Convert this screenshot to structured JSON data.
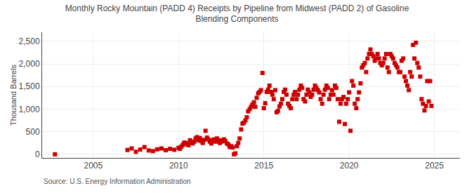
{
  "chart_data": {
    "type": "scatter",
    "title": "Monthly Rocky Mountain (PADD 4) Receipts by Pipeline from Midwest (PADD 2) of Gasoline\nBlending Components",
    "y_label": "Thousand Barrels",
    "annotations": [
      "Source: U.S. Energy Information Administration"
    ],
    "color": "#cc0000",
    "marker": "square",
    "grid": true,
    "xlim": [
      2002.0,
      2026.5
    ],
    "xticks": [
      2005,
      2010,
      2015,
      2020,
      2025
    ],
    "ylim": [
      -80,
      2700
    ],
    "yticks": [
      0,
      500,
      {
        "value": 1000,
        "label": "1,000"
      },
      {
        "value": 1500,
        "label": "1,500"
      },
      {
        "value": 2000,
        "label": "2,000"
      },
      {
        "value": 2500,
        "label": "2,500"
      }
    ],
    "x": [
      2002.75,
      2007.0,
      2007.25,
      2007.5,
      2007.75,
      2008.0,
      2008.25,
      2008.5,
      2008.75,
      2009.0,
      2009.25,
      2009.5,
      2009.75,
      2010.0,
      2010.08,
      2010.17,
      2010.25,
      2010.33,
      2010.42,
      2010.5,
      2010.58,
      2010.67,
      2010.75,
      2010.83,
      2010.92,
      2011.0,
      2011.08,
      2011.17,
      2011.25,
      2011.33,
      2011.42,
      2011.5,
      2011.58,
      2011.67,
      2011.75,
      2011.83,
      2011.92,
      2012.0,
      2012.08,
      2012.17,
      2012.25,
      2012.33,
      2012.42,
      2012.5,
      2012.58,
      2012.67,
      2012.75,
      2012.83,
      2012.92,
      2013.0,
      2013.08,
      2013.17,
      2013.25,
      2013.33,
      2013.42,
      2013.5,
      2013.58,
      2013.67,
      2013.75,
      2013.83,
      2013.92,
      2014.0,
      2014.08,
      2014.17,
      2014.25,
      2014.33,
      2014.42,
      2014.5,
      2014.58,
      2014.67,
      2014.75,
      2014.83,
      2014.92,
      2015.0,
      2015.08,
      2015.17,
      2015.25,
      2015.33,
      2015.42,
      2015.5,
      2015.58,
      2015.67,
      2015.75,
      2015.83,
      2015.92,
      2016.0,
      2016.08,
      2016.17,
      2016.25,
      2016.33,
      2016.42,
      2016.5,
      2016.58,
      2016.67,
      2016.75,
      2016.83,
      2016.92,
      2017.0,
      2017.08,
      2017.17,
      2017.25,
      2017.33,
      2017.42,
      2017.5,
      2017.58,
      2017.67,
      2017.75,
      2017.83,
      2017.92,
      2018.0,
      2018.08,
      2018.17,
      2018.25,
      2018.33,
      2018.42,
      2018.5,
      2018.58,
      2018.67,
      2018.75,
      2018.83,
      2018.92,
      2019.0,
      2019.08,
      2019.17,
      2019.25,
      2019.33,
      2019.42,
      2019.5,
      2019.58,
      2019.67,
      2019.75,
      2019.83,
      2019.92,
      2020.0,
      2020.08,
      2020.17,
      2020.25,
      2020.33,
      2020.42,
      2020.5,
      2020.58,
      2020.67,
      2020.75,
      2020.83,
      2020.92,
      2021.0,
      2021.08,
      2021.17,
      2021.25,
      2021.33,
      2021.42,
      2021.5,
      2021.58,
      2021.67,
      2021.75,
      2021.83,
      2021.92,
      2022.0,
      2022.08,
      2022.17,
      2022.25,
      2022.33,
      2022.42,
      2022.5,
      2022.58,
      2022.67,
      2022.75,
      2022.83,
      2022.92,
      2023.0,
      2023.08,
      2023.17,
      2023.25,
      2023.33,
      2023.42,
      2023.5,
      2023.58,
      2023.67,
      2023.75,
      2023.83,
      2023.92,
      2024.0,
      2024.08,
      2024.17,
      2024.25,
      2024.33,
      2024.42,
      2024.5,
      2024.58,
      2024.67,
      2024.75,
      2024.83
    ],
    "values": [
      0,
      95,
      130,
      55,
      105,
      160,
      85,
      70,
      110,
      130,
      90,
      120,
      100,
      145,
      120,
      170,
      210,
      260,
      250,
      220,
      200,
      310,
      270,
      240,
      280,
      350,
      380,
      310,
      360,
      290,
      250,
      320,
      520,
      370,
      330,
      280,
      240,
      310,
      330,
      280,
      350,
      310,
      250,
      280,
      310,
      330,
      290,
      240,
      220,
      160,
      180,
      150,
      0,
      20,
      180,
      250,
      350,
      550,
      680,
      700,
      750,
      820,
      950,
      1000,
      1050,
      1100,
      1150,
      1050,
      1250,
      1350,
      1380,
      1420,
      1800,
      1020,
      1130,
      1380,
      1430,
      1520,
      1380,
      1320,
      1220,
      1420,
      930,
      960,
      1060,
      1120,
      1220,
      1380,
      1430,
      1320,
      1120,
      1070,
      1020,
      1220,
      1320,
      1380,
      1220,
      1320,
      1430,
      1520,
      1470,
      1220,
      1170,
      1320,
      1430,
      1370,
      1270,
      1320,
      1430,
      1520,
      1470,
      1420,
      1370,
      1220,
      1120,
      1320,
      1430,
      1520,
      1470,
      1220,
      1320,
      1420,
      1320,
      1520,
      1470,
      1220,
      720,
      1120,
      1220,
      1270,
      670,
      1120,
      1220,
      1370,
      520,
      1620,
      1520,
      1120,
      1020,
      1220,
      1370,
      1570,
      1920,
      1970,
      2020,
      1820,
      2120,
      2220,
      2320,
      2220,
      2170,
      2070,
      2120,
      2220,
      2120,
      2020,
      1970,
      2020,
      2120,
      2220,
      1920,
      1820,
      2220,
      2170,
      2120,
      2020,
      1970,
      1920,
      1820,
      1820,
      2070,
      2120,
      1720,
      1620,
      1520,
      1420,
      1820,
      1720,
      2420,
      2120,
      2470,
      2020,
      1920,
      1720,
      1220,
      1120,
      970,
      1070,
      1620,
      1170,
      1620,
      1070
    ]
  }
}
